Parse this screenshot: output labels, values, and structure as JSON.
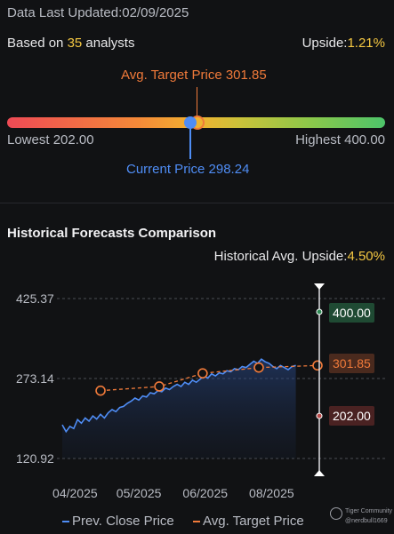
{
  "header": {
    "last_updated": "Data Last Updated:02/09/2025",
    "based_on_prefix": "Based on",
    "analyst_count": "35",
    "based_on_suffix": "analysts",
    "upside_label": "Upside:",
    "upside_value": "1.21%"
  },
  "gauge": {
    "avg_target_label": "Avg. Target Price 301.85",
    "current_label": "Current Price 298.24",
    "lowest_label": "Lowest 202.00",
    "highest_label": "Highest 400.00",
    "low": 202.0,
    "high": 400.0,
    "avg_target": 301.85,
    "current": 298.24
  },
  "section": {
    "title": "Historical Forecasts Comparison",
    "hist_upside_label": "Historical Avg. Upside:",
    "hist_upside_value": "4.50%"
  },
  "tags": {
    "high": "400.00",
    "avg": "301.85",
    "low": "202.00"
  },
  "legend": {
    "close": "Prev. Close Price",
    "target": "Avg. Target Price"
  },
  "watermark": {
    "brand": "Tiger Community",
    "user": "@nerdbull1669"
  },
  "colors": {
    "close_line": "#4f8df5",
    "target_line": "#f07a3a",
    "yellow": "#f5c842"
  },
  "chart_data": {
    "type": "line",
    "y_ticks": [
      "425.37",
      "273.14",
      "120.92"
    ],
    "x_ticks": [
      "04/2025",
      "05/2025",
      "06/2025",
      "08/2025"
    ],
    "ylim": [
      120.92,
      425.37
    ],
    "xlim": [
      0,
      100
    ],
    "series": [
      {
        "name": "Prev. Close Price",
        "points": [
          [
            0,
            185
          ],
          [
            1.5,
            172
          ],
          [
            3,
            182
          ],
          [
            4.5,
            178
          ],
          [
            6,
            195
          ],
          [
            7.5,
            188
          ],
          [
            9,
            198
          ],
          [
            10.5,
            192
          ],
          [
            12,
            202
          ],
          [
            13.5,
            196
          ],
          [
            15,
            205
          ],
          [
            16.5,
            198
          ],
          [
            18,
            208
          ],
          [
            19.5,
            214
          ],
          [
            21,
            210
          ],
          [
            22.5,
            218
          ],
          [
            24,
            220
          ],
          [
            25.5,
            226
          ],
          [
            27,
            230
          ],
          [
            28.5,
            236
          ],
          [
            30,
            232
          ],
          [
            31.5,
            240
          ],
          [
            33,
            238
          ],
          [
            34.5,
            246
          ],
          [
            36,
            244
          ],
          [
            37.5,
            250
          ],
          [
            39,
            248
          ],
          [
            40.5,
            255
          ],
          [
            42,
            252
          ],
          [
            43.5,
            258
          ],
          [
            45,
            262
          ],
          [
            46.5,
            258
          ],
          [
            48,
            266
          ],
          [
            49.5,
            262
          ],
          [
            51,
            270
          ],
          [
            52.5,
            266
          ],
          [
            54,
            272
          ],
          [
            55.5,
            278
          ],
          [
            57,
            274
          ],
          [
            58.5,
            282
          ],
          [
            60,
            278
          ],
          [
            61.5,
            284
          ],
          [
            63,
            282
          ],
          [
            64.5,
            288
          ],
          [
            66,
            286
          ],
          [
            67.5,
            292
          ],
          [
            69,
            290
          ],
          [
            70.5,
            296
          ],
          [
            72,
            294
          ],
          [
            73.5,
            300
          ],
          [
            75,
            306
          ],
          [
            76.5,
            302
          ],
          [
            78,
            310
          ],
          [
            79.5,
            305
          ],
          [
            81,
            302
          ],
          [
            82.5,
            296
          ],
          [
            84,
            292
          ],
          [
            85.5,
            298
          ],
          [
            87,
            294
          ],
          [
            88.5,
            290
          ],
          [
            90,
            296
          ],
          [
            91.5,
            298
          ]
        ]
      },
      {
        "name": "Avg. Target Price",
        "points": [
          [
            15,
            250
          ],
          [
            38,
            258
          ],
          [
            55,
            283
          ],
          [
            77,
            294
          ],
          [
            100,
            298
          ]
        ]
      }
    ],
    "range_markers": {
      "high": 400.0,
      "avg": 301.85,
      "low": 202.0
    }
  }
}
